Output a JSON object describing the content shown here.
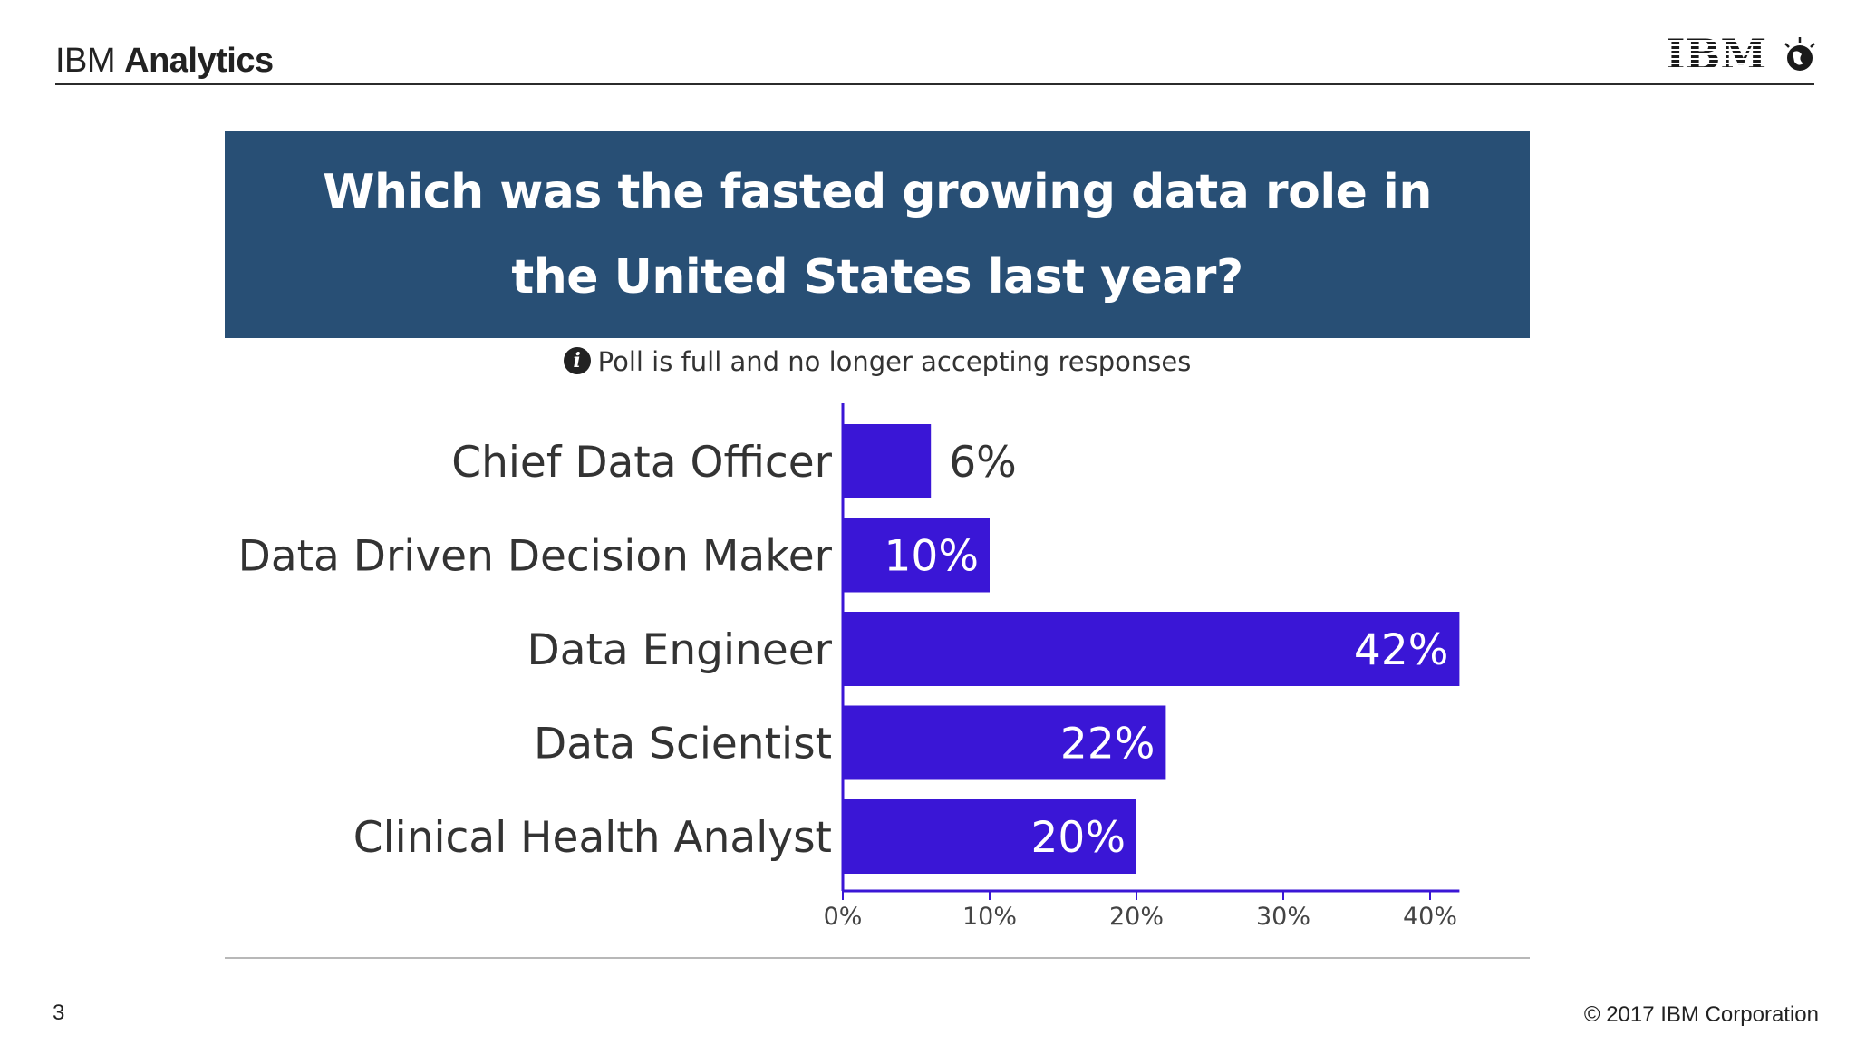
{
  "header": {
    "brand_prefix": "IBM",
    "brand_suffix": "Analytics",
    "logo_text": "IBM"
  },
  "poll": {
    "notice": "Poll is full and no longer accepting responses",
    "info_icon": "info-icon"
  },
  "chart_data": {
    "type": "bar",
    "orientation": "horizontal",
    "title": "Which was the fasted growing data role in the United States last year?",
    "categories": [
      "Chief Data Officer",
      "Data Driven Decision Maker",
      "Data Engineer",
      "Data Scientist",
      "Clinical Health Analyst"
    ],
    "values": [
      6,
      10,
      42,
      22,
      20
    ],
    "value_labels": [
      "6%",
      "10%",
      "42%",
      "22%",
      "20%"
    ],
    "xlim": [
      0,
      42
    ],
    "xticks": [
      0,
      10,
      20,
      30,
      40
    ],
    "xtick_labels": [
      "0%",
      "10%",
      "20%",
      "30%",
      "40%"
    ],
    "xlabel": "",
    "ylabel": "",
    "grid": false,
    "bar_color": "#3a16d6"
  },
  "footer": {
    "page_number": "3",
    "copyright": "© 2017 IBM Corporation"
  },
  "colors": {
    "title_bg": "#284f75",
    "title_text": "#ffffff",
    "bar": "#3a16d6",
    "axis": "#3a16d6",
    "label_text": "#333333"
  }
}
